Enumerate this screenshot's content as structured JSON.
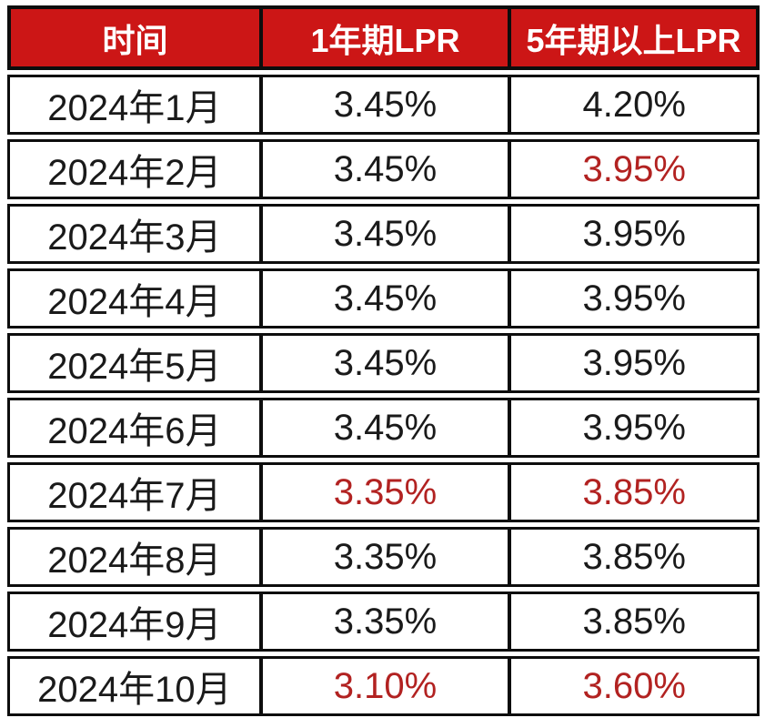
{
  "table": {
    "headers": [
      {
        "label": "时间"
      },
      {
        "label": "1年期LPR"
      },
      {
        "label": "5年期以上LPR"
      }
    ],
    "rows": [
      {
        "time": "2024年1月",
        "lpr_1y": "3.45%",
        "lpr_1y_red": false,
        "lpr_5y": "4.20%",
        "lpr_5y_red": false
      },
      {
        "time": "2024年2月",
        "lpr_1y": "3.45%",
        "lpr_1y_red": false,
        "lpr_5y": "3.95%",
        "lpr_5y_red": true
      },
      {
        "time": "2024年3月",
        "lpr_1y": "3.45%",
        "lpr_1y_red": false,
        "lpr_5y": "3.95%",
        "lpr_5y_red": false
      },
      {
        "time": "2024年4月",
        "lpr_1y": "3.45%",
        "lpr_1y_red": false,
        "lpr_5y": "3.95%",
        "lpr_5y_red": false
      },
      {
        "time": "2024年5月",
        "lpr_1y": "3.45%",
        "lpr_1y_red": false,
        "lpr_5y": "3.95%",
        "lpr_5y_red": false
      },
      {
        "time": "2024年6月",
        "lpr_1y": "3.45%",
        "lpr_1y_red": false,
        "lpr_5y": "3.95%",
        "lpr_5y_red": false
      },
      {
        "time": "2024年7月",
        "lpr_1y": "3.35%",
        "lpr_1y_red": true,
        "lpr_5y": "3.85%",
        "lpr_5y_red": true
      },
      {
        "time": "2024年8月",
        "lpr_1y": "3.35%",
        "lpr_1y_red": false,
        "lpr_5y": "3.85%",
        "lpr_5y_red": false
      },
      {
        "time": "2024年9月",
        "lpr_1y": "3.35%",
        "lpr_1y_red": false,
        "lpr_5y": "3.85%",
        "lpr_5y_red": false
      },
      {
        "time": "2024年10月",
        "lpr_1y": "3.10%",
        "lpr_1y_red": true,
        "lpr_5y": "3.60%",
        "lpr_5y_red": true
      }
    ]
  },
  "colors": {
    "header_bg": "#cc1616",
    "header_text": "#ffffff",
    "body_text": "#1a1a1a",
    "highlight_text": "#b22221",
    "border": "#0d0d0d",
    "page_bg": "#ffffff"
  },
  "chart_data": {
    "type": "table",
    "categories": [
      "2024年1月",
      "2024年2月",
      "2024年3月",
      "2024年4月",
      "2024年5月",
      "2024年6月",
      "2024年7月",
      "2024年8月",
      "2024年9月",
      "2024年10月"
    ],
    "series": [
      {
        "name": "1年期LPR",
        "unit": "%",
        "values": [
          3.45,
          3.45,
          3.45,
          3.45,
          3.45,
          3.45,
          3.35,
          3.35,
          3.35,
          3.1
        ]
      },
      {
        "name": "5年期以上LPR",
        "unit": "%",
        "values": [
          4.2,
          3.95,
          3.95,
          3.95,
          3.95,
          3.95,
          3.85,
          3.85,
          3.85,
          3.6
        ]
      }
    ],
    "highlighted_cells": [
      {
        "category": "2024年2月",
        "series": "5年期以上LPR"
      },
      {
        "category": "2024年7月",
        "series": "1年期LPR"
      },
      {
        "category": "2024年7月",
        "series": "5年期以上LPR"
      },
      {
        "category": "2024年10月",
        "series": "1年期LPR"
      },
      {
        "category": "2024年10月",
        "series": "5年期以上LPR"
      }
    ]
  }
}
